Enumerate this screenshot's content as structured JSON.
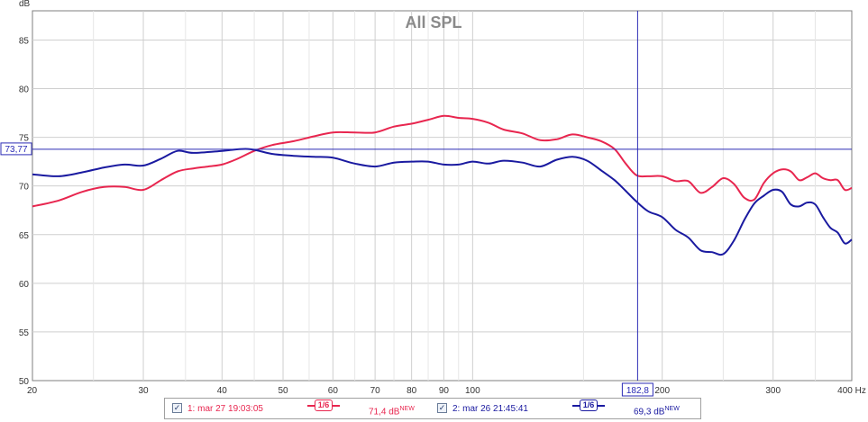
{
  "chart_data": {
    "type": "line",
    "title": "All SPL",
    "ylabel": "dB",
    "xlabel": "Hz",
    "xscale": "log",
    "xlim": [
      20,
      400
    ],
    "ylim": [
      50,
      88
    ],
    "grid": true,
    "x_ticks": [
      20,
      30,
      40,
      50,
      60,
      70,
      80,
      90,
      100,
      200,
      300,
      400
    ],
    "x_tick_labels": [
      "20",
      "30",
      "40",
      "50",
      "60",
      "70",
      "80",
      "90",
      "100",
      "200",
      "300",
      "400 Hz"
    ],
    "y_ticks": [
      50,
      55,
      60,
      65,
      70,
      75,
      80,
      85
    ],
    "cursor": {
      "x": 182.8,
      "x_label": "182,8",
      "y": 73.77,
      "y_label": "73,77"
    },
    "series": [
      {
        "name": "1: mar 27 19:03:05",
        "color": "#e8264f",
        "points": [
          [
            20,
            67.9
          ],
          [
            22,
            68.5
          ],
          [
            24,
            69.4
          ],
          [
            26,
            69.9
          ],
          [
            28,
            69.9
          ],
          [
            30,
            69.6
          ],
          [
            32,
            70.6
          ],
          [
            34,
            71.5
          ],
          [
            36,
            71.8
          ],
          [
            38,
            72.0
          ],
          [
            40,
            72.2
          ],
          [
            42,
            72.7
          ],
          [
            45,
            73.6
          ],
          [
            48,
            74.2
          ],
          [
            52,
            74.6
          ],
          [
            56,
            75.1
          ],
          [
            60,
            75.5
          ],
          [
            65,
            75.5
          ],
          [
            70,
            75.5
          ],
          [
            75,
            76.1
          ],
          [
            80,
            76.4
          ],
          [
            85,
            76.8
          ],
          [
            90,
            77.2
          ],
          [
            95,
            77.0
          ],
          [
            100,
            76.9
          ],
          [
            106,
            76.5
          ],
          [
            112,
            75.8
          ],
          [
            120,
            75.4
          ],
          [
            128,
            74.7
          ],
          [
            136,
            74.8
          ],
          [
            144,
            75.3
          ],
          [
            152,
            75.0
          ],
          [
            160,
            74.6
          ],
          [
            168,
            73.8
          ],
          [
            175,
            72.3
          ],
          [
            182,
            71.1
          ],
          [
            190,
            71.0
          ],
          [
            200,
            71.0
          ],
          [
            210,
            70.5
          ],
          [
            220,
            70.5
          ],
          [
            230,
            69.3
          ],
          [
            240,
            69.9
          ],
          [
            250,
            70.8
          ],
          [
            260,
            70.2
          ],
          [
            270,
            68.8
          ],
          [
            280,
            68.6
          ],
          [
            290,
            70.3
          ],
          [
            300,
            71.3
          ],
          [
            310,
            71.7
          ],
          [
            320,
            71.5
          ],
          [
            330,
            70.6
          ],
          [
            340,
            70.9
          ],
          [
            350,
            71.3
          ],
          [
            360,
            70.8
          ],
          [
            370,
            70.6
          ],
          [
            380,
            70.6
          ],
          [
            390,
            69.6
          ],
          [
            400,
            69.8
          ]
        ]
      },
      {
        "name": "2: mar 26 21:45:41",
        "color": "#1a1aa0",
        "points": [
          [
            20,
            71.2
          ],
          [
            22,
            71.0
          ],
          [
            24,
            71.4
          ],
          [
            26,
            71.9
          ],
          [
            28,
            72.2
          ],
          [
            30,
            72.1
          ],
          [
            32,
            72.8
          ],
          [
            34,
            73.6
          ],
          [
            36,
            73.4
          ],
          [
            40,
            73.6
          ],
          [
            44,
            73.8
          ],
          [
            48,
            73.3
          ],
          [
            52,
            73.1
          ],
          [
            56,
            73.0
          ],
          [
            60,
            72.9
          ],
          [
            65,
            72.3
          ],
          [
            70,
            72.0
          ],
          [
            75,
            72.4
          ],
          [
            80,
            72.5
          ],
          [
            85,
            72.5
          ],
          [
            90,
            72.2
          ],
          [
            95,
            72.2
          ],
          [
            100,
            72.5
          ],
          [
            106,
            72.3
          ],
          [
            112,
            72.6
          ],
          [
            120,
            72.4
          ],
          [
            128,
            72.0
          ],
          [
            136,
            72.7
          ],
          [
            144,
            73.0
          ],
          [
            152,
            72.6
          ],
          [
            160,
            71.6
          ],
          [
            168,
            70.6
          ],
          [
            175,
            69.5
          ],
          [
            182,
            68.4
          ],
          [
            190,
            67.4
          ],
          [
            200,
            66.8
          ],
          [
            210,
            65.5
          ],
          [
            220,
            64.7
          ],
          [
            230,
            63.4
          ],
          [
            240,
            63.2
          ],
          [
            250,
            63.0
          ],
          [
            260,
            64.4
          ],
          [
            270,
            66.5
          ],
          [
            280,
            68.2
          ],
          [
            290,
            69.0
          ],
          [
            300,
            69.6
          ],
          [
            310,
            69.4
          ],
          [
            320,
            68.1
          ],
          [
            330,
            67.9
          ],
          [
            340,
            68.3
          ],
          [
            350,
            68.1
          ],
          [
            360,
            66.8
          ],
          [
            370,
            65.7
          ],
          [
            380,
            65.2
          ],
          [
            390,
            64.1
          ],
          [
            400,
            64.5
          ]
        ]
      }
    ]
  },
  "legend": {
    "items": [
      {
        "check": "✓",
        "label": "1: mar 27 19:03:05",
        "smoothing": "1/6",
        "value": "71,4 dB",
        "badge": "NEW",
        "color": "#e8264f"
      },
      {
        "check": "✓",
        "label": "2: mar 26 21:45:41",
        "smoothing": "1/6",
        "value": "69,3 dB",
        "badge": "NEW",
        "color": "#1a1aa0"
      }
    ]
  }
}
